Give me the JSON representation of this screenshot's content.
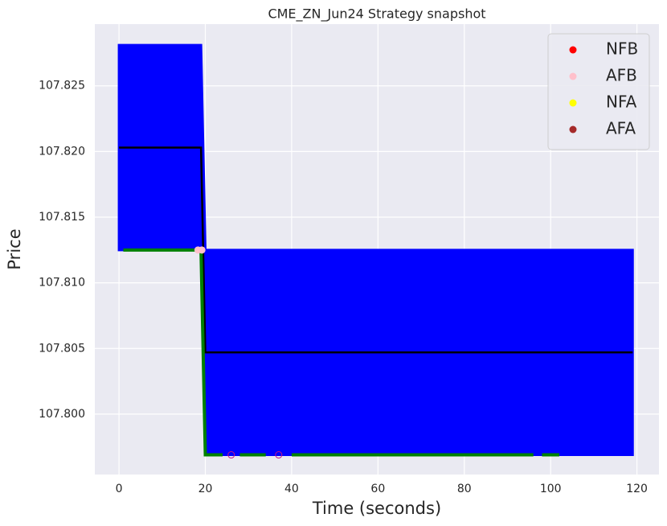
{
  "chart_data": {
    "type": "line",
    "title": "CME_ZN_Jun24 Strategy snapshot",
    "xlabel": "Time (seconds)",
    "ylabel": "Price",
    "xlim": [
      -5.6,
      125.1
    ],
    "ylim": [
      107.7954,
      107.8297
    ],
    "xticks": [
      0,
      20,
      40,
      60,
      80,
      100,
      120
    ],
    "yticks": [
      {
        "value": 107.8,
        "label": "107.800"
      },
      107.805,
      {
        "value": 107.81,
        "label": "107.810"
      },
      107.815,
      {
        "value": 107.82,
        "label": "107.820"
      },
      107.825
    ],
    "grid": true,
    "background": "#eaeaf2",
    "band": {
      "color": "#0000ff",
      "x": [
        0,
        19,
        20,
        119
      ],
      "upper": [
        107.8281,
        107.8281,
        107.8125,
        107.8125
      ],
      "lower": [
        107.8125,
        107.8125,
        107.7969,
        107.7969
      ]
    },
    "lines": [
      {
        "color": "#000000",
        "x": [
          0,
          19,
          20,
          119
        ],
        "y": [
          107.8203,
          107.8203,
          107.8047,
          107.8047
        ]
      },
      {
        "color": "#008000",
        "x": [
          1,
          19,
          20,
          24,
          null,
          28,
          34,
          null,
          40,
          96,
          null,
          98,
          102
        ],
        "y": [
          107.8125,
          107.8125,
          107.7969,
          107.7969,
          null,
          107.7969,
          107.7969,
          null,
          107.7969,
          107.7969,
          null,
          107.7969,
          107.7969
        ]
      }
    ],
    "legend": "upper right",
    "series": [
      {
        "name": "NFB",
        "color": "#ff0000",
        "x": [
          26,
          37
        ],
        "values": [
          107.7969,
          107.7969
        ],
        "hollow": true
      },
      {
        "name": "AFB",
        "color": "#ffc0cb",
        "x": [
          18.3,
          19.2
        ],
        "values": [
          107.8125,
          107.8125
        ]
      },
      {
        "name": "NFA",
        "color": "#ffff00",
        "x": [],
        "values": []
      },
      {
        "name": "AFA",
        "color": "#a52a2a",
        "x": [],
        "values": []
      }
    ]
  }
}
